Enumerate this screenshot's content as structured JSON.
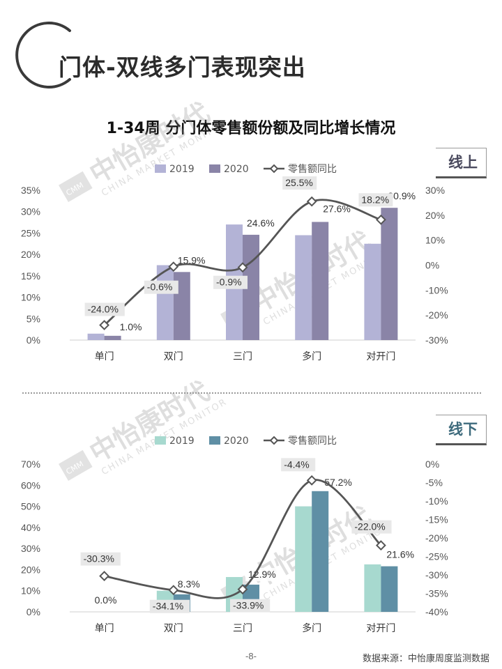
{
  "page": {
    "title": "门体-双线多门表现突出",
    "chart_title": "1-34周 分门体零售额份额及同比增长情况",
    "page_number": "-8-",
    "source": "数据来源：中怡康周度监测数据",
    "watermark": "中怡康时代",
    "watermark_sub": "CHINA MARKET MONITOR",
    "watermark_logo": "CMM"
  },
  "chart_data": [
    {
      "id": "online",
      "tag": "线上",
      "type": "bar",
      "categories": [
        "单门",
        "双门",
        "三门",
        "多门",
        "对开门"
      ],
      "series": [
        {
          "name": "2019",
          "values": [
            1.5,
            17.5,
            27.0,
            24.5,
            22.5
          ],
          "color": "#b3b3d6"
        },
        {
          "name": "2020",
          "values": [
            1.0,
            15.9,
            24.6,
            27.6,
            30.9
          ],
          "color": "#8a84a7",
          "data_labels": [
            "1.0%",
            "15.9%",
            "24.6%",
            "27.6%",
            "30.9%"
          ]
        }
      ],
      "line": {
        "name": "零售额同比",
        "values": [
          -24.0,
          -0.6,
          -0.9,
          25.5,
          18.2
        ],
        "color": "#555555",
        "data_labels": [
          "-24.0%",
          "-0.6%",
          "-0.9%",
          "25.5%",
          "18.2%"
        ]
      },
      "left_axis": {
        "ticks": [
          "0%",
          "5%",
          "10%",
          "15%",
          "20%",
          "25%",
          "30%",
          "35%"
        ],
        "ylim": [
          0,
          35
        ]
      },
      "right_axis": {
        "ticks": [
          "-30%",
          "-20%",
          "-10%",
          "0%",
          "10%",
          "20%",
          "30%"
        ],
        "ylim": [
          -30,
          30
        ]
      }
    },
    {
      "id": "offline",
      "tag": "线下",
      "type": "bar",
      "categories": [
        "单门",
        "双门",
        "三门",
        "多门",
        "对开门"
      ],
      "series": [
        {
          "name": "2019",
          "values": [
            0.0,
            10.0,
            16.5,
            50.0,
            22.5
          ],
          "color": "#a7d9cf"
        },
        {
          "name": "2020",
          "values": [
            0.0,
            8.3,
            12.9,
            57.2,
            21.6
          ],
          "color": "#5f8fa5",
          "data_labels": [
            "0.0%",
            "8.3%",
            "12.9%",
            "57.2%",
            "21.6%"
          ]
        }
      ],
      "line": {
        "name": "零售额同比",
        "values": [
          -30.3,
          -34.1,
          -33.9,
          -4.4,
          -22.0
        ],
        "color": "#555555",
        "data_labels": [
          "-30.3%",
          "-34.1%",
          "-33.9%",
          "-4.4%",
          "-22.0%"
        ]
      },
      "left_axis": {
        "ticks": [
          "0%",
          "10%",
          "20%",
          "30%",
          "40%",
          "50%",
          "60%",
          "70%"
        ],
        "ylim": [
          0,
          70
        ]
      },
      "right_axis": {
        "ticks": [
          "-40%",
          "-35%",
          "-30%",
          "-25%",
          "-20%",
          "-15%",
          "-10%",
          "-5%",
          "0%"
        ],
        "ylim": [
          -40,
          0
        ]
      }
    }
  ]
}
